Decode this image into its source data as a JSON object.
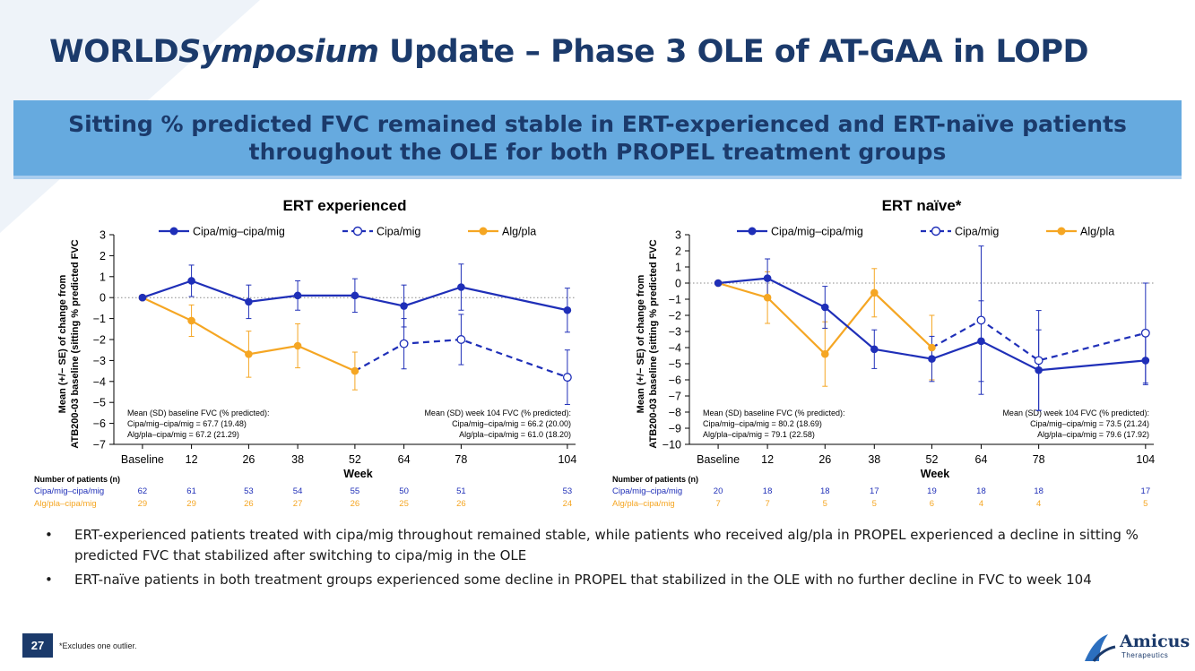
{
  "header": {
    "title_part1": "WORLD",
    "title_italic": "Symposium",
    "title_part2": " Update – Phase 3 OLE of AT-GAA in LOPD"
  },
  "banner": {
    "text": "Sitting % predicted FVC remained stable in ERT-experienced and ERT-naïve patients throughout the OLE for both PROPEL treatment groups"
  },
  "colors": {
    "navy": "#1b3a6b",
    "blue": "#1f2fb8",
    "orange": "#f5a623",
    "banner": "#66aadf"
  },
  "chart_data": [
    {
      "type": "line",
      "title": "ERT experienced",
      "xlabel": "Week",
      "ylabel_line1": "Mean (+/− SE) of change from",
      "ylabel_line2": "ATB200-03 baseline (sitting % predicted FVC",
      "categories": [
        "Baseline",
        "12",
        "26",
        "38",
        "52",
        "64",
        "78",
        "104"
      ],
      "weeks": [
        0,
        12,
        26,
        38,
        52,
        64,
        78,
        104
      ],
      "ylim": [
        -7,
        3
      ],
      "yticks": [
        3,
        2,
        1,
        0,
        -1,
        -2,
        -3,
        -4,
        -5,
        -6,
        -7
      ],
      "ytick_labels": [
        "3",
        "2",
        "1",
        "0",
        "−1",
        "−2",
        "−3",
        "−4",
        "−5",
        "−6",
        "−7"
      ],
      "legend": [
        "Cipa/mig–cipa/mig",
        "Cipa/mig",
        "Alg/pla"
      ],
      "series": [
        {
          "name": "Cipa/mig–cipa/mig",
          "style": "solid-filled",
          "color": "blue",
          "x": [
            0,
            12,
            26,
            38,
            52,
            64,
            78,
            104
          ],
          "y": [
            0,
            0.8,
            -0.2,
            0.1,
            0.1,
            -0.4,
            0.5,
            -0.6
          ],
          "err": [
            0,
            0.75,
            0.8,
            0.7,
            0.8,
            1.0,
            1.1,
            1.05
          ]
        },
        {
          "name": "Alg/pla",
          "style": "solid-filled",
          "color": "orange",
          "x": [
            0,
            12,
            26,
            38,
            52
          ],
          "y": [
            0,
            -1.1,
            -2.7,
            -2.3,
            -3.5
          ],
          "err": [
            0,
            0.75,
            1.1,
            1.05,
            0.9
          ]
        },
        {
          "name": "Cipa/mig",
          "style": "dashed-open",
          "color": "blue",
          "x": [
            52,
            64,
            78,
            104
          ],
          "y": [
            -3.5,
            -2.2,
            -2.0,
            -3.8
          ],
          "err": [
            0,
            1.2,
            1.2,
            1.3
          ]
        }
      ],
      "note_left": [
        "Mean (SD) baseline FVC (% predicted):",
        "Cipa/mig–cipa/mig = 67.7 (19.48)",
        "Alg/pla–cipa/mig = 67.2 (21.29)"
      ],
      "note_right": [
        "Mean (SD) week 104 FVC (% predicted):",
        "Cipa/mig–cipa/mig = 66.2 (20.00)",
        "Alg/pla–cipa/mig = 61.0 (18.20)"
      ],
      "patients": {
        "header": "Number of patients (n)",
        "rows": [
          {
            "label": "Cipa/mig–cipa/mig",
            "color": "blue",
            "values": [
              "62",
              "61",
              "53",
              "54",
              "55",
              "50",
              "51",
              "53"
            ]
          },
          {
            "label": "Alg/pla–cipa/mig",
            "color": "orange",
            "values": [
              "29",
              "29",
              "26",
              "27",
              "26",
              "25",
              "26",
              "24"
            ]
          }
        ]
      }
    },
    {
      "type": "line",
      "title": "ERT naïve*",
      "xlabel": "Week",
      "ylabel_line1": "Mean (+/− SE) of change from",
      "ylabel_line2": "ATB200-03 baseline (sitting % predicted FVC",
      "categories": [
        "Baseline",
        "12",
        "26",
        "38",
        "52",
        "64",
        "78",
        "104"
      ],
      "weeks": [
        0,
        12,
        26,
        38,
        52,
        64,
        78,
        104
      ],
      "ylim": [
        -10,
        3
      ],
      "yticks": [
        3,
        2,
        1,
        0,
        -1,
        -2,
        -3,
        -4,
        -5,
        -6,
        -7,
        -8,
        -9,
        -10
      ],
      "ytick_labels": [
        "3",
        "2",
        "1",
        "0",
        "−1",
        "−2",
        "−3",
        "−4",
        "−5",
        "−6",
        "−7",
        "−8",
        "−9",
        "−10"
      ],
      "legend": [
        "Cipa/mig–cipa/mig",
        "Cipa/mig",
        "Alg/pla"
      ],
      "series": [
        {
          "name": "Cipa/mig–cipa/mig",
          "style": "solid-filled",
          "color": "blue",
          "x": [
            0,
            12,
            26,
            38,
            52,
            64,
            78,
            104
          ],
          "y": [
            0,
            0.3,
            -1.5,
            -4.1,
            -4.7,
            -3.6,
            -5.4,
            -4.8
          ],
          "err": [
            0,
            1.2,
            1.3,
            1.2,
            1.4,
            2.5,
            2.5,
            1.5
          ]
        },
        {
          "name": "Alg/pla",
          "style": "solid-filled",
          "color": "orange",
          "x": [
            0,
            12,
            26,
            38,
            52
          ],
          "y": [
            0,
            -0.9,
            -4.4,
            -0.6,
            -4.0
          ],
          "err": [
            0,
            1.6,
            2.0,
            1.5,
            2.0
          ]
        },
        {
          "name": "Cipa/mig",
          "style": "dashed-open",
          "color": "blue",
          "x": [
            52,
            64,
            78,
            104
          ],
          "y": [
            -4.0,
            -2.3,
            -4.8,
            -3.1
          ],
          "err": [
            0,
            4.6,
            3.1,
            3.1
          ]
        }
      ],
      "note_left": [
        "Mean (SD) baseline FVC (% predicted):",
        "Cipa/mig–cipa/mig = 80.2 (18.69)",
        "Alg/pla–cipa/mig = 79.1 (22.58)"
      ],
      "note_right": [
        "Mean (SD) week 104 FVC (% predicted):",
        "Cipa/mig–cipa/mig = 73.5 (21.24)",
        "Alg/pla–cipa/mig = 79.6 (17.92)"
      ],
      "patients": {
        "header": "Number of patients (n)",
        "rows": [
          {
            "label": "Cipa/mig–cipa/mig",
            "color": "blue",
            "values": [
              "20",
              "18",
              "18",
              "17",
              "19",
              "18",
              "18",
              "17"
            ]
          },
          {
            "label": "Alg/pla–cipa/mig",
            "color": "orange",
            "values": [
              "7",
              "7",
              "5",
              "5",
              "6",
              "4",
              "4",
              "5"
            ]
          }
        ]
      }
    }
  ],
  "bullets": [
    "ERT-experienced patients treated with cipa/mig throughout remained stable, while patients who received alg/pla in PROPEL experienced a decline in sitting % predicted FVC that stabilized after switching to cipa/mig in the OLE",
    "ERT-naïve patients in both treatment groups experienced some decline in PROPEL that stabilized in the OLE with no further decline in FVC to week 104"
  ],
  "bullet_symbol": "•",
  "footer": {
    "page": "27",
    "footnote": "*Excludes one outlier.",
    "logo": "Amicus",
    "logo_sub": "Therapeutics"
  }
}
